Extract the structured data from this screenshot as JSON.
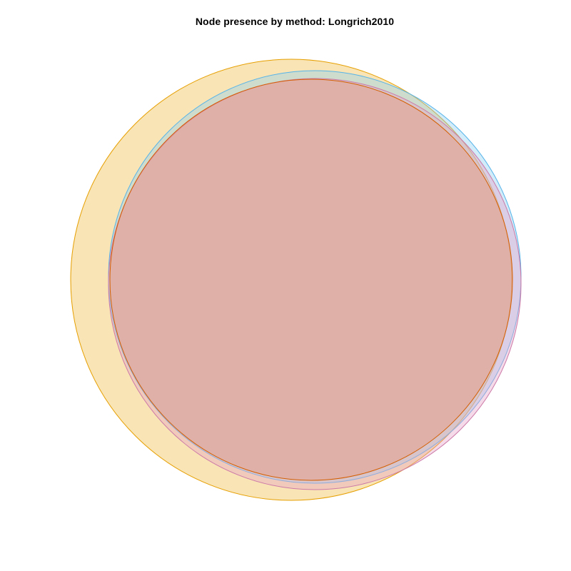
{
  "title": "Node presence by method: Longrich2010",
  "sets": [
    {
      "stroke": "#e69f00",
      "fill": "#f2c35a"
    },
    {
      "stroke": "#56b4e9",
      "fill": "#8fd0f2"
    },
    {
      "stroke": "#cc79a7",
      "fill": "#e6a3c7"
    },
    {
      "stroke": "#d55e00",
      "fill": "#e89070"
    }
  ]
}
